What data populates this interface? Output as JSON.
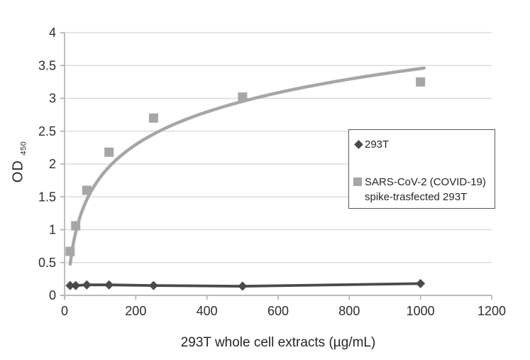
{
  "chart_data": {
    "type": "scatter",
    "title": "",
    "xlabel": "293T whole cell extracts (µg/mL)",
    "ylabel": "OD",
    "ylabel_sub": "450",
    "xlim": [
      0,
      1200
    ],
    "ylim": [
      0,
      4
    ],
    "xticks": [
      0,
      200,
      400,
      600,
      800,
      1000,
      1200
    ],
    "yticks": [
      0,
      0.5,
      1,
      1.5,
      2,
      2.5,
      3,
      3.5,
      4
    ],
    "grid": "horizontal-only",
    "legend_position": "right-center-boxed",
    "x": [
      15.6,
      31.25,
      62.5,
      125,
      250,
      500,
      1000
    ],
    "series": [
      {
        "name": "293T",
        "marker": "diamond",
        "color": "#4a4a4a",
        "line": "straight-connecting",
        "values": [
          0.15,
          0.15,
          0.16,
          0.16,
          0.15,
          0.14,
          0.18
        ]
      },
      {
        "name": "SARS-CoV-2 (COVID-19) spike-trasfected 293T",
        "marker": "square",
        "color": "#a6a6a6",
        "line": "logarithmic-trendline",
        "values": [
          0.67,
          1.06,
          1.6,
          2.18,
          2.7,
          3.02,
          3.25
        ],
        "trendline": {
          "type": "logarithmic",
          "a": 0.72,
          "b": -1.52,
          "x_start": 16,
          "x_end": 1010
        }
      }
    ],
    "colors": {
      "grid": "#d6d6d6",
      "axis": "#b3b3b3",
      "tick_text": "#2e2e2e",
      "series_293t": "#4a4a4a",
      "series_spike": "#a6a6a6"
    }
  }
}
